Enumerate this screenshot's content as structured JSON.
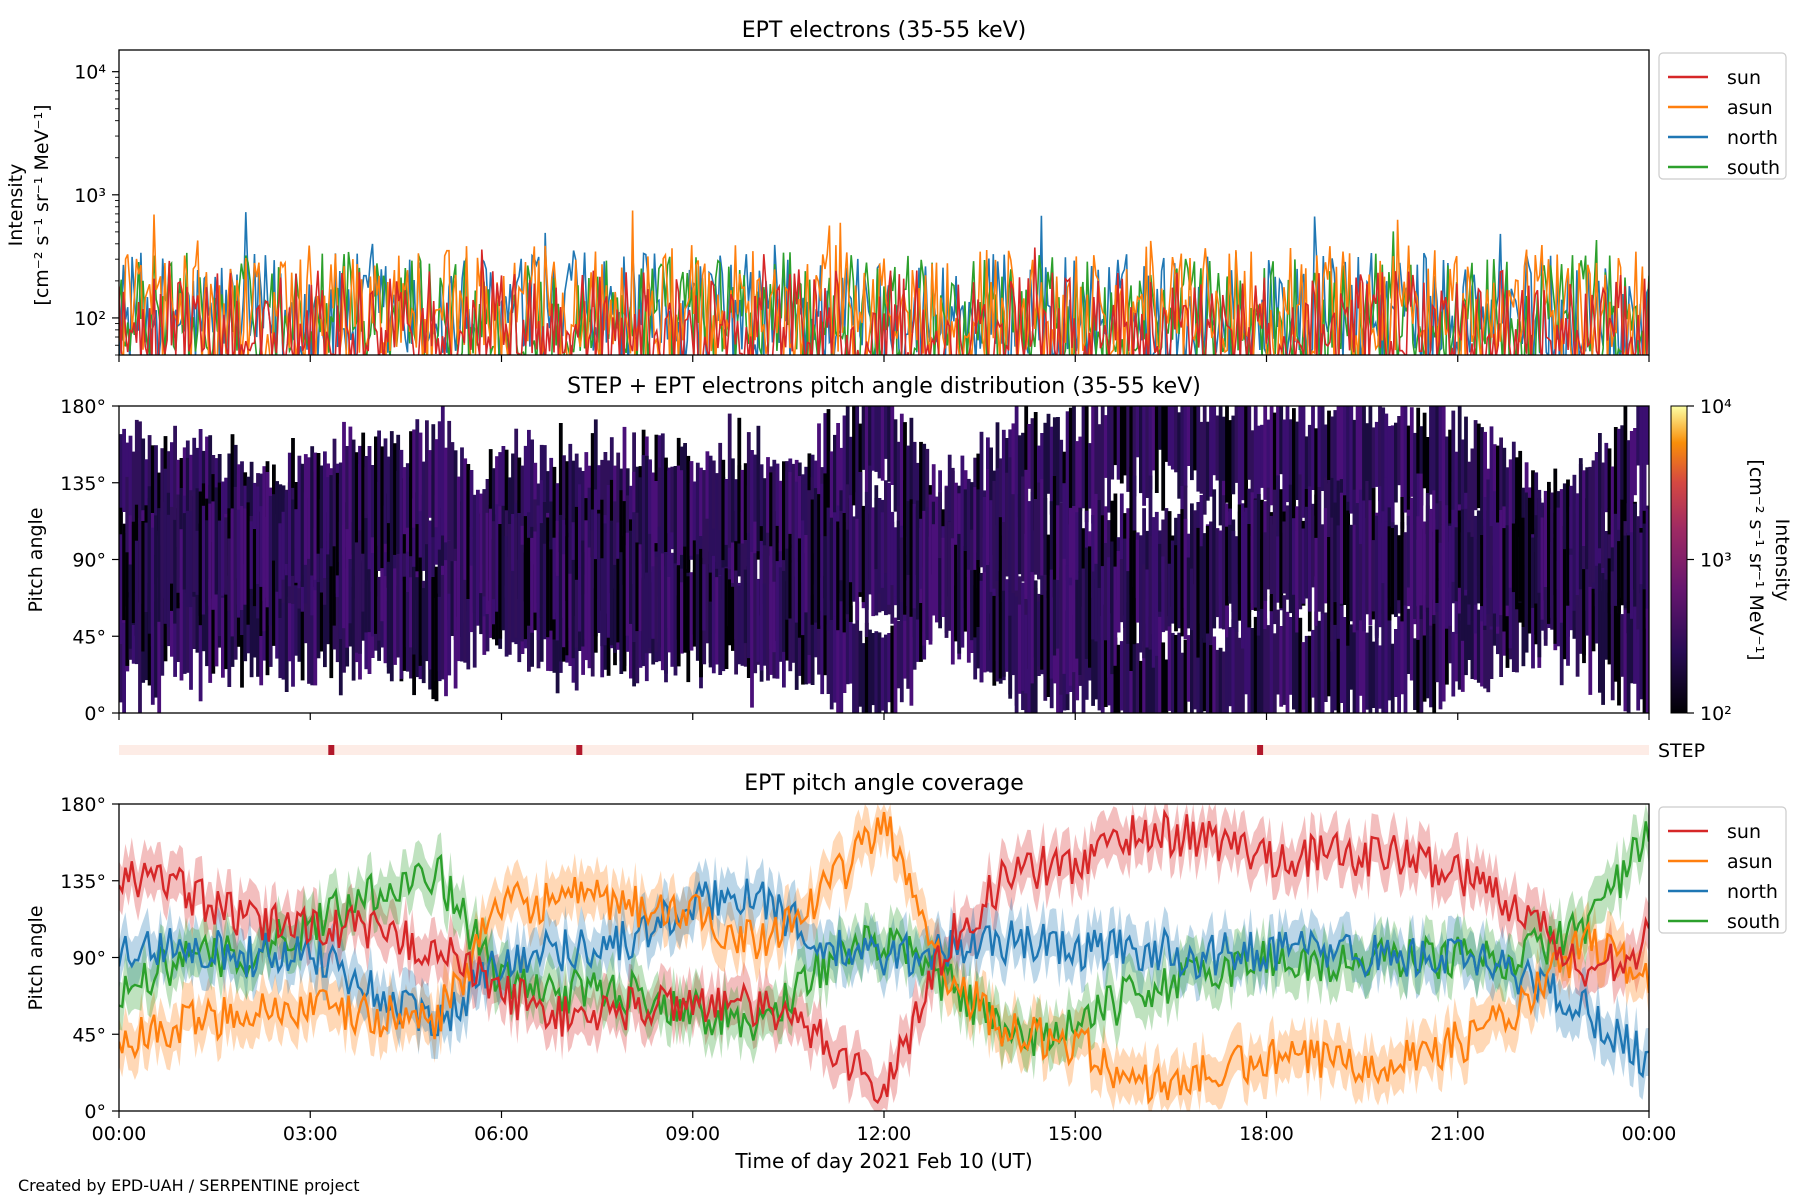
{
  "credit": "Created by EPD-UAH / SERPENTINE project",
  "xlabel": "Time of day 2021 Feb 10 (UT)",
  "x_ticks": [
    "00:00",
    "03:00",
    "06:00",
    "09:00",
    "12:00",
    "15:00",
    "18:00",
    "21:00",
    "00:00"
  ],
  "step_label": "STEP",
  "colors": {
    "sun": "#d62728",
    "asun": "#ff7f0e",
    "north": "#1f77b4",
    "south": "#2ca02c"
  },
  "chart_data": [
    {
      "type": "line",
      "title": "EPT electrons (35-55 keV)",
      "ylabel_line1": "Intensity",
      "ylabel_line2": "[cm⁻² s⁻¹ sr⁻¹ MeV⁻¹]",
      "yscale": "log",
      "ylim": [
        50,
        15000
      ],
      "y_ticks": [
        {
          "value": 100,
          "label": "10²"
        },
        {
          "value": 1000,
          "label": "10³"
        },
        {
          "value": 10000,
          "label": "10⁴"
        }
      ],
      "x_range_hours": [
        0,
        24
      ],
      "legend": [
        "sun",
        "asun",
        "north",
        "south"
      ],
      "legend_position": "right",
      "series": [
        {
          "name": "sun",
          "typical_range": [
            50,
            400
          ]
        },
        {
          "name": "asun",
          "typical_range": [
            50,
            700
          ]
        },
        {
          "name": "north",
          "typical_range": [
            50,
            600
          ]
        },
        {
          "name": "south",
          "typical_range": [
            50,
            600
          ]
        }
      ]
    },
    {
      "type": "heatmap",
      "title": "STEP + EPT electrons pitch angle distribution (35-55 keV)",
      "ylabel": "Pitch angle",
      "ylim": [
        0,
        180
      ],
      "y_ticks": [
        "0°",
        "45°",
        "90°",
        "135°",
        "180°"
      ],
      "colorbar_label_line1": "Intensity",
      "colorbar_label_line2": "[cm⁻² s⁻¹ sr⁻¹ MeV⁻¹]",
      "colorbar_ticks": [
        "10²",
        "10³",
        "10⁴"
      ],
      "colorbar_range": [
        100,
        10000
      ],
      "step_markers_hours": [
        3.33,
        7.22,
        17.9
      ]
    },
    {
      "type": "line",
      "title": "EPT pitch angle coverage",
      "ylabel": "Pitch angle",
      "ylim": [
        0,
        180
      ],
      "y_ticks": [
        "0°",
        "45°",
        "90°",
        "135°",
        "180°"
      ],
      "legend": [
        "sun",
        "asun",
        "north",
        "south"
      ],
      "legend_position": "right",
      "series": [
        {
          "name": "sun",
          "x_hours": [
            0,
            1,
            2,
            3,
            4,
            5,
            6,
            7,
            8,
            9,
            10,
            11,
            12,
            13,
            14,
            15,
            16,
            17,
            18,
            19,
            20,
            21,
            22,
            23,
            24
          ],
          "values": [
            140,
            130,
            110,
            110,
            105,
            95,
            70,
            55,
            60,
            65,
            60,
            45,
            10,
            100,
            140,
            145,
            165,
            160,
            150,
            150,
            150,
            140,
            120,
            80,
            100
          ]
        },
        {
          "name": "asun",
          "x_hours": [
            0,
            1,
            2,
            3,
            4,
            5,
            6,
            7,
            8,
            9,
            10,
            11,
            12,
            13,
            14,
            15,
            16,
            17,
            18,
            19,
            20,
            21,
            22,
            23,
            24
          ],
          "values": [
            40,
            50,
            60,
            60,
            55,
            55,
            120,
            125,
            120,
            115,
            100,
            125,
            170,
            80,
            45,
            40,
            15,
            20,
            30,
            30,
            30,
            40,
            60,
            100,
            80
          ]
        },
        {
          "name": "north",
          "x_hours": [
            0,
            1,
            2,
            3,
            4,
            5,
            6,
            7,
            8,
            9,
            10,
            11,
            12,
            13,
            14,
            15,
            16,
            17,
            18,
            19,
            20,
            21,
            22,
            23,
            24
          ],
          "values": [
            90,
            100,
            90,
            95,
            70,
            50,
            90,
            95,
            100,
            120,
            130,
            95,
            90,
            95,
            100,
            95,
            95,
            90,
            95,
            95,
            90,
            90,
            80,
            60,
            30
          ]
        },
        {
          "name": "south",
          "x_hours": [
            0,
            1,
            2,
            3,
            4,
            5,
            6,
            7,
            8,
            9,
            10,
            11,
            12,
            13,
            14,
            15,
            16,
            17,
            18,
            19,
            20,
            21,
            22,
            23,
            24
          ],
          "values": [
            70,
            90,
            90,
            110,
            130,
            140,
            75,
            70,
            70,
            60,
            50,
            85,
            100,
            75,
            40,
            50,
            70,
            80,
            90,
            85,
            90,
            90,
            90,
            110,
            160
          ]
        }
      ]
    }
  ]
}
